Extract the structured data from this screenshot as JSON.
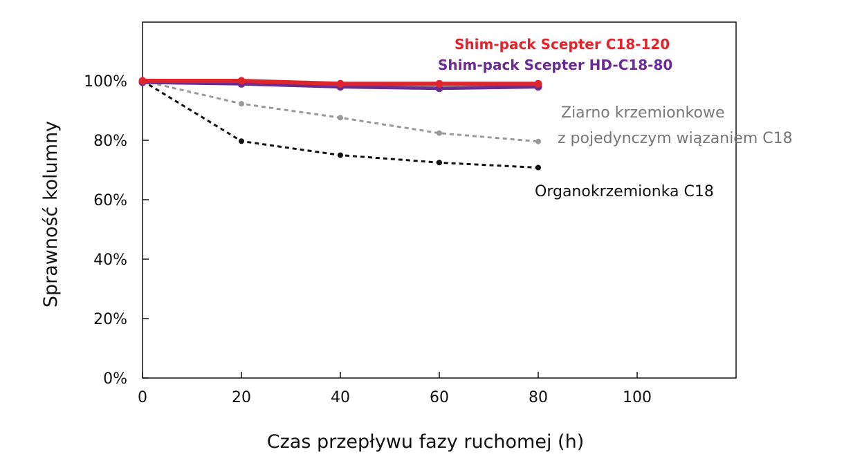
{
  "chart_data": {
    "type": "line",
    "xlabel": "Czas przepływu fazy ruchomej (h)",
    "ylabel": "Sprawność kolumny",
    "xlim": [
      0,
      120
    ],
    "ylim": [
      0,
      100
    ],
    "xticks": [
      0,
      20,
      40,
      60,
      80,
      100
    ],
    "xtick_labels": [
      "0",
      "20",
      "40",
      "60",
      "80",
      "100"
    ],
    "yticks": [
      0,
      20,
      40,
      60,
      80,
      100
    ],
    "ytick_labels": [
      "0%",
      "20%",
      "40%",
      "60%",
      "80%",
      "100%"
    ],
    "grid": false,
    "legend_position": "top-right",
    "x": [
      0,
      20,
      40,
      60,
      80
    ],
    "series": [
      {
        "name": "Shim-pack Scepter C18-120",
        "values": [
          100,
          100,
          99,
          99,
          99
        ],
        "color": "#e0242b",
        "style": "solid"
      },
      {
        "name": "Shim-pack Scepter HD-C18-80",
        "values": [
          99.5,
          99,
          98,
          97.5,
          98
        ],
        "color": "#6a2c91",
        "style": "solid"
      },
      {
        "name": "Ziarno krzemionkowe z pojedynczym wiązaniem C18",
        "values": [
          100,
          92.3,
          87.6,
          82.4,
          79.6
        ],
        "color": "#999999",
        "style": "dotted"
      },
      {
        "name": "Organokrzemionka C18",
        "values": [
          100,
          79.7,
          75,
          72.5,
          70.8
        ],
        "color": "#111111",
        "style": "dotted"
      }
    ],
    "annotations": {
      "legend_red": "Shim-pack Scepter C18-120",
      "legend_purple": "Shim-pack Scepter HD-C18-80",
      "silica_line1": "Ziarno krzemionkowe",
      "silica_line2": "z pojedynczym wiązaniem C18",
      "organo": "Organokrzemionka C18"
    }
  }
}
